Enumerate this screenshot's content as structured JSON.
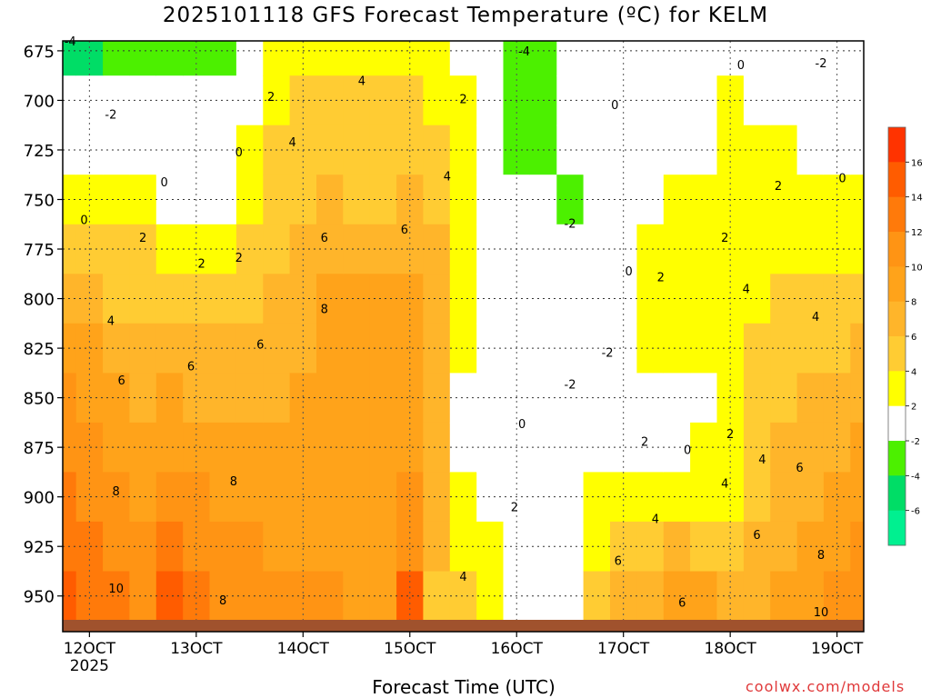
{
  "chart_data": {
    "type": "heatmap",
    "title": "2025101118 GFS Forecast Temperature (ºC) for KELM",
    "xlabel": "Forecast Time (UTC)",
    "ylabel": "",
    "credit": "coolwx.com/models",
    "y_ticks": [
      "675",
      "700",
      "725",
      "750",
      "775",
      "800",
      "825",
      "850",
      "875",
      "900",
      "925",
      "950"
    ],
    "y_values": [
      675,
      700,
      725,
      750,
      775,
      800,
      825,
      850,
      875,
      900,
      925,
      950
    ],
    "ylim": [
      968,
      670
    ],
    "x_ticks": [
      "12OCT",
      "13OCT",
      "14OCT",
      "15OCT",
      "16OCT",
      "17OCT",
      "18OCT",
      "19OCT"
    ],
    "x_values": [
      12,
      13,
      14,
      15,
      16,
      17,
      18,
      19
    ],
    "x_year": "2025",
    "xlim": [
      11.75,
      19.25
    ],
    "colorbar": {
      "labels": [
        "16",
        "14",
        "12",
        "10",
        "8",
        "6",
        "4",
        "2",
        "-2",
        "-4",
        "-6"
      ],
      "bins": [
        {
          "from": 18,
          "to": 16,
          "color": "#ff3300"
        },
        {
          "from": 16,
          "to": 14,
          "color": "#ff5c00"
        },
        {
          "from": 14,
          "to": 12,
          "color": "#ff7a0a"
        },
        {
          "from": 12,
          "to": 10,
          "color": "#ff9414"
        },
        {
          "from": 10,
          "to": 8,
          "color": "#ffa31a"
        },
        {
          "from": 8,
          "to": 6,
          "color": "#ffb52a"
        },
        {
          "from": 6,
          "to": 4,
          "color": "#ffcc33"
        },
        {
          "from": 4,
          "to": 2,
          "color": "#ffff00"
        },
        {
          "from": 2,
          "to": -2,
          "color": "#ffffff"
        },
        {
          "from": -2,
          "to": -4,
          "color": "#4cf000"
        },
        {
          "from": -4,
          "to": -6,
          "color": "#00dd66"
        },
        {
          "from": -6,
          "to": -8,
          "color": "#00f090"
        }
      ]
    },
    "surface_color": "#a0522d",
    "columns": [
      {
        "x": 11.75,
        "t": [
          -5,
          -2,
          1,
          3,
          5,
          7,
          9,
          10,
          11,
          12,
          13,
          15
        ]
      },
      {
        "x": 12.0,
        "t": [
          -5,
          -2,
          0,
          2,
          4,
          6,
          8,
          9,
          10,
          11,
          12,
          12
        ]
      },
      {
        "x": 12.25,
        "t": [
          -4,
          -1,
          0,
          2,
          4,
          5,
          7,
          8,
          9,
          10,
          11,
          12
        ]
      },
      {
        "x": 12.5,
        "t": [
          -3,
          -1,
          0,
          2,
          4,
          5,
          6,
          7,
          8,
          9,
          10,
          11
        ]
      },
      {
        "x": 12.75,
        "t": [
          -3,
          -2,
          0,
          1,
          3,
          5,
          7,
          8,
          9,
          11,
          13,
          15
        ]
      },
      {
        "x": 13.0,
        "t": [
          -3,
          -2,
          0,
          1,
          3,
          4,
          6,
          7,
          8,
          10,
          11,
          12
        ]
      },
      {
        "x": 13.25,
        "t": [
          -3,
          -1,
          0,
          1,
          3,
          4,
          6,
          7,
          8,
          9,
          10,
          11
        ]
      },
      {
        "x": 13.5,
        "t": [
          -1,
          1,
          2,
          3,
          4,
          5,
          6,
          7,
          8,
          9,
          10,
          11
        ]
      },
      {
        "x": 13.75,
        "t": [
          2,
          3,
          4,
          5,
          5,
          6,
          7,
          7,
          8,
          9,
          9,
          10
        ]
      },
      {
        "x": 14.0,
        "t": [
          3,
          4,
          4,
          5,
          6,
          7,
          7,
          8,
          8,
          9,
          9,
          10
        ]
      },
      {
        "x": 14.25,
        "t": [
          3,
          4,
          5,
          6,
          7,
          8,
          8,
          9,
          9,
          9,
          9,
          10
        ]
      },
      {
        "x": 14.5,
        "t": [
          3,
          4,
          4,
          5,
          7,
          8,
          9,
          9,
          9,
          9,
          9,
          9
        ]
      },
      {
        "x": 14.75,
        "t": [
          3,
          4,
          4,
          5,
          7,
          8,
          9,
          9,
          9,
          9,
          9,
          9
        ]
      },
      {
        "x": 15.0,
        "t": [
          3,
          4,
          5,
          6,
          7,
          8,
          9,
          9,
          9,
          10,
          11,
          14
        ]
      },
      {
        "x": 15.25,
        "t": [
          2,
          3,
          4,
          5,
          6,
          7,
          7,
          7,
          7,
          7,
          6,
          5
        ]
      },
      {
        "x": 15.5,
        "t": [
          1,
          2,
          3,
          3,
          3,
          3,
          2,
          1,
          1,
          2,
          3,
          4
        ]
      },
      {
        "x": 15.75,
        "t": [
          0,
          -1,
          -2,
          -1,
          0,
          1,
          0,
          0,
          0,
          1,
          2,
          2
        ]
      },
      {
        "x": 16.0,
        "t": [
          -3,
          -4,
          -3,
          -2,
          -1,
          -1,
          -2,
          -2,
          -1,
          0,
          1,
          1
        ]
      },
      {
        "x": 16.25,
        "t": [
          -3,
          -4,
          -3,
          -2,
          -1,
          -1,
          -2,
          -2,
          0,
          1,
          1,
          0
        ]
      },
      {
        "x": 16.5,
        "t": [
          -1,
          -2,
          -2,
          -3,
          -1,
          0,
          -1,
          -2,
          -1,
          0,
          0,
          1
        ]
      },
      {
        "x": 16.75,
        "t": [
          0,
          -1,
          -1,
          -1,
          0,
          -1,
          -1,
          -1,
          0,
          2,
          3,
          5
        ]
      },
      {
        "x": 17.0,
        "t": [
          0,
          0,
          -1,
          0,
          1,
          1,
          1,
          1,
          1,
          2,
          4,
          6
        ]
      },
      {
        "x": 17.25,
        "t": [
          0,
          0,
          0,
          1,
          2,
          2,
          2,
          1,
          1,
          3,
          5,
          7
        ]
      },
      {
        "x": 17.5,
        "t": [
          1,
          0,
          0,
          2,
          3,
          3,
          2,
          1,
          1,
          3,
          6,
          8
        ]
      },
      {
        "x": 17.75,
        "t": [
          0,
          0,
          1,
          3,
          3,
          3,
          2,
          1,
          2,
          3,
          5,
          8
        ]
      },
      {
        "x": 18.0,
        "t": [
          1,
          2,
          3,
          3,
          3,
          3,
          3,
          2,
          2,
          3,
          5,
          7
        ]
      },
      {
        "x": 18.25,
        "t": [
          1,
          1,
          2,
          3,
          3,
          3,
          4,
          4,
          4,
          5,
          6,
          7
        ]
      },
      {
        "x": 18.5,
        "t": [
          0,
          1,
          2,
          3,
          3,
          4,
          5,
          5,
          6,
          6,
          6,
          8
        ]
      },
      {
        "x": 18.75,
        "t": [
          -1,
          0,
          1,
          2,
          3,
          4,
          5,
          6,
          6,
          7,
          8,
          9
        ]
      },
      {
        "x": 19.0,
        "t": [
          -2,
          0,
          1,
          2,
          3,
          4,
          5,
          6,
          7,
          8,
          9,
          10
        ]
      },
      {
        "x": 19.25,
        "t": [
          -2,
          0,
          1,
          2,
          3,
          5,
          6,
          7,
          8,
          9,
          10,
          11
        ]
      }
    ],
    "contour_labels": [
      {
        "text": "-4",
        "x": 11.82,
        "y": 670
      },
      {
        "text": "-2",
        "x": 12.2,
        "y": 707
      },
      {
        "text": "0",
        "x": 11.95,
        "y": 760
      },
      {
        "text": "2",
        "x": 12.5,
        "y": 769
      },
      {
        "text": "4",
        "x": 12.2,
        "y": 811
      },
      {
        "text": "6",
        "x": 12.3,
        "y": 841
      },
      {
        "text": "8",
        "x": 12.25,
        "y": 897
      },
      {
        "text": "10",
        "x": 12.25,
        "y": 946
      },
      {
        "text": "0",
        "x": 12.7,
        "y": 741
      },
      {
        "text": "0",
        "x": 13.4,
        "y": 726
      },
      {
        "text": "2",
        "x": 13.05,
        "y": 782
      },
      {
        "text": "6",
        "x": 12.95,
        "y": 834
      },
      {
        "text": "8",
        "x": 13.35,
        "y": 892
      },
      {
        "text": "8",
        "x": 13.25,
        "y": 952
      },
      {
        "text": "2",
        "x": 13.4,
        "y": 779
      },
      {
        "text": "6",
        "x": 13.6,
        "y": 823
      },
      {
        "text": "2",
        "x": 13.7,
        "y": 698
      },
      {
        "text": "4",
        "x": 13.9,
        "y": 721
      },
      {
        "text": "6",
        "x": 14.2,
        "y": 769
      },
      {
        "text": "8",
        "x": 14.2,
        "y": 805
      },
      {
        "text": "4",
        "x": 14.55,
        "y": 690
      },
      {
        "text": "6",
        "x": 14.95,
        "y": 765
      },
      {
        "text": "4",
        "x": 15.35,
        "y": 738
      },
      {
        "text": "2",
        "x": 15.5,
        "y": 699
      },
      {
        "text": "4",
        "x": 15.5,
        "y": 940
      },
      {
        "text": "2",
        "x": 15.98,
        "y": 905
      },
      {
        "text": "0",
        "x": 16.05,
        "y": 863
      },
      {
        "text": "-4",
        "x": 16.07,
        "y": 675
      },
      {
        "text": "-2",
        "x": 16.5,
        "y": 762
      },
      {
        "text": "-2",
        "x": 16.5,
        "y": 843
      },
      {
        "text": "-2",
        "x": 16.85,
        "y": 827
      },
      {
        "text": "0",
        "x": 16.92,
        "y": 702
      },
      {
        "text": "0",
        "x": 17.05,
        "y": 786
      },
      {
        "text": "2",
        "x": 17.35,
        "y": 789
      },
      {
        "text": "2",
        "x": 17.2,
        "y": 872
      },
      {
        "text": "4",
        "x": 17.3,
        "y": 911
      },
      {
        "text": "6",
        "x": 16.95,
        "y": 932
      },
      {
        "text": "6",
        "x": 17.55,
        "y": 953
      },
      {
        "text": "0",
        "x": 17.6,
        "y": 876
      },
      {
        "text": "2",
        "x": 17.95,
        "y": 769
      },
      {
        "text": "2",
        "x": 18.0,
        "y": 868
      },
      {
        "text": "4",
        "x": 18.15,
        "y": 795
      },
      {
        "text": "4",
        "x": 17.95,
        "y": 893
      },
      {
        "text": "4",
        "x": 18.3,
        "y": 881
      },
      {
        "text": "6",
        "x": 18.25,
        "y": 919
      },
      {
        "text": "6",
        "x": 18.65,
        "y": 885
      },
      {
        "text": "8",
        "x": 18.85,
        "y": 929
      },
      {
        "text": "10",
        "x": 18.85,
        "y": 958
      },
      {
        "text": "0",
        "x": 18.1,
        "y": 682
      },
      {
        "text": "2",
        "x": 18.45,
        "y": 743
      },
      {
        "text": "4",
        "x": 18.8,
        "y": 809
      },
      {
        "text": "-2",
        "x": 18.85,
        "y": 681
      },
      {
        "text": "0",
        "x": 19.05,
        "y": 739
      }
    ]
  }
}
